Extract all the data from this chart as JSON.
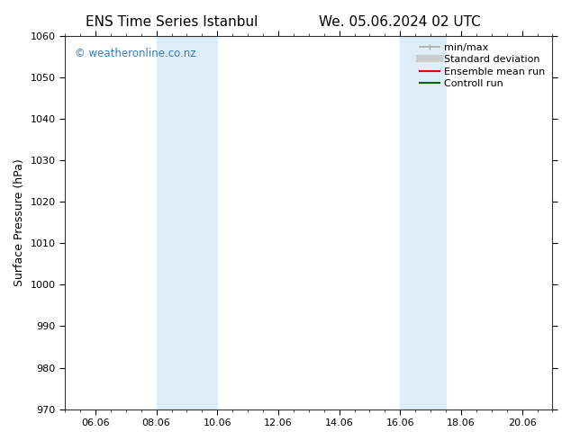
{
  "title_left": "ENS Time Series Istanbul",
  "title_right": "We. 05.06.2024 02 UTC",
  "ylabel": "Surface Pressure (hPa)",
  "ylim": [
    970,
    1060
  ],
  "yticks": [
    970,
    980,
    990,
    1000,
    1010,
    1020,
    1030,
    1040,
    1050,
    1060
  ],
  "xlim": [
    0,
    16
  ],
  "xtick_positions": [
    1,
    3,
    5,
    7,
    9,
    11,
    13,
    15
  ],
  "xtick_labels": [
    "06.06",
    "08.06",
    "10.06",
    "12.06",
    "14.06",
    "16.06",
    "18.06",
    "20.06"
  ],
  "shaded_bands": [
    {
      "x_start": 3,
      "x_end": 5
    },
    {
      "x_start": 11,
      "x_end": 12.5
    }
  ],
  "shaded_color": "#ddeef8",
  "watermark_text": "© weatheronline.co.nz",
  "watermark_color": "#3a7abf",
  "legend_entries": [
    {
      "label": "min/max",
      "color": "#aaaaaa",
      "lw": 1.2
    },
    {
      "label": "Standard deviation",
      "color": "#cccccc",
      "lw": 6
    },
    {
      "label": "Ensemble mean run",
      "color": "#dd0000",
      "lw": 1.5
    },
    {
      "label": "Controll run",
      "color": "#006600",
      "lw": 1.5
    }
  ],
  "bg_color": "#ffffff",
  "plot_bg_color": "#ffffff",
  "spine_color": "#333333",
  "tick_fontsize": 8,
  "ylabel_fontsize": 9,
  "title_fontsize": 11,
  "legend_fontsize": 8
}
